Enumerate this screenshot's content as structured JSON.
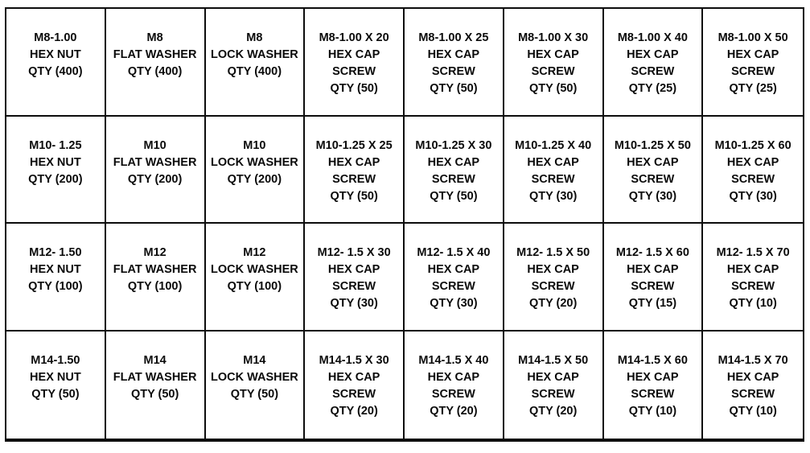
{
  "colors": {
    "background": "#ffffff",
    "border": "#0d0d0d",
    "text": "#0a0a0a"
  },
  "sheet": {
    "description": "Metric fastener assortment label grid, 8 columns x 4 rows",
    "rows": [
      {
        "cells": [
          {
            "lines": [
              "M8-1.00",
              "HEX NUT",
              "QTY (400)"
            ]
          },
          {
            "lines": [
              "M8",
              "FLAT WASHER",
              "QTY (400)"
            ]
          },
          {
            "lines": [
              "M8",
              "LOCK WASHER",
              "QTY (400)"
            ]
          },
          {
            "lines": [
              "M8-1.00 X 20",
              "HEX CAP",
              "SCREW",
              "QTY (50)"
            ]
          },
          {
            "lines": [
              "M8-1.00 X 25",
              "HEX CAP",
              "SCREW",
              "QTY (50)"
            ]
          },
          {
            "lines": [
              "M8-1.00 X 30",
              "HEX CAP",
              "SCREW",
              "QTY (50)"
            ]
          },
          {
            "lines": [
              "M8-1.00 X 40",
              "HEX CAP",
              "SCREW",
              "QTY (25)"
            ]
          },
          {
            "lines": [
              "M8-1.00 X 50",
              "HEX CAP",
              "SCREW",
              "QTY (25)"
            ]
          }
        ]
      },
      {
        "cells": [
          {
            "lines": [
              "M10- 1.25",
              "HEX NUT",
              "QTY (200)"
            ]
          },
          {
            "lines": [
              "M10",
              "FLAT WASHER",
              "QTY (200)"
            ]
          },
          {
            "lines": [
              "M10",
              "LOCK WASHER",
              "QTY (200)"
            ]
          },
          {
            "lines": [
              "M10-1.25 X 25",
              "HEX CAP",
              "SCREW",
              "QTY (50)"
            ]
          },
          {
            "lines": [
              "M10-1.25 X 30",
              "HEX CAP",
              "SCREW",
              "QTY (50)"
            ]
          },
          {
            "lines": [
              "M10-1.25 X 40",
              "HEX CAP",
              "SCREW",
              "QTY (30)"
            ]
          },
          {
            "lines": [
              "M10-1.25 X 50",
              "HEX CAP",
              "SCREW",
              "QTY (30)"
            ]
          },
          {
            "lines": [
              "M10-1.25 X 60",
              "HEX CAP",
              "SCREW",
              "QTY (30)"
            ]
          }
        ]
      },
      {
        "cells": [
          {
            "lines": [
              "M12- 1.50",
              "HEX NUT",
              "QTY (100)"
            ]
          },
          {
            "lines": [
              "M12",
              "FLAT WASHER",
              "QTY (100)"
            ]
          },
          {
            "lines": [
              "M12",
              "LOCK WASHER",
              "QTY (100)"
            ]
          },
          {
            "lines": [
              "M12- 1.5 X 30",
              "HEX CAP",
              "SCREW",
              "QTY (30)"
            ]
          },
          {
            "lines": [
              "M12- 1.5 X 40",
              "HEX CAP",
              "SCREW",
              "QTY (30)"
            ]
          },
          {
            "lines": [
              "M12- 1.5 X 50",
              "HEX CAP",
              "SCREW",
              "QTY (20)"
            ]
          },
          {
            "lines": [
              "M12- 1.5 X 60",
              "HEX CAP",
              "SCREW",
              "QTY (15)"
            ]
          },
          {
            "lines": [
              "M12- 1.5 X 70",
              "HEX CAP",
              "SCREW",
              "QTY (10)"
            ]
          }
        ]
      },
      {
        "cells": [
          {
            "lines": [
              "M14-1.50",
              "HEX NUT",
              "QTY (50)"
            ]
          },
          {
            "lines": [
              "M14",
              "FLAT WASHER",
              "QTY (50)"
            ]
          },
          {
            "lines": [
              "M14",
              "LOCK WASHER",
              "QTY (50)"
            ]
          },
          {
            "lines": [
              "M14-1.5 X 30",
              "HEX CAP",
              "SCREW",
              "QTY (20)"
            ]
          },
          {
            "lines": [
              "M14-1.5 X 40",
              "HEX CAP",
              "SCREW",
              "QTY (20)"
            ]
          },
          {
            "lines": [
              "M14-1.5 X 50",
              "HEX CAP",
              "SCREW",
              "QTY (20)"
            ]
          },
          {
            "lines": [
              "M14-1.5 X 60",
              "HEX CAP",
              "SCREW",
              "QTY (10)"
            ]
          },
          {
            "lines": [
              "M14-1.5 X 70",
              "HEX CAP",
              "SCREW",
              "QTY (10)"
            ]
          }
        ]
      }
    ]
  }
}
